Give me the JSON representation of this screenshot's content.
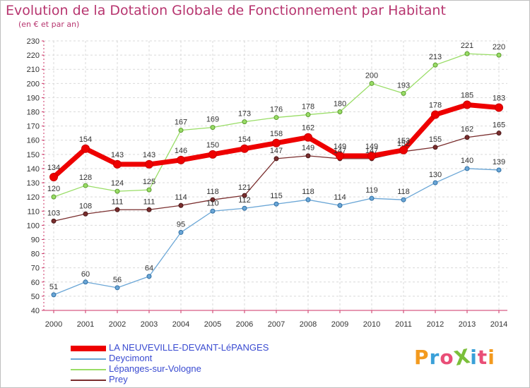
{
  "header": {
    "title": "Evolution de la Dotation Globale de Fonctionnement par Habitant",
    "subtitle": "(en € et par an)"
  },
  "logo": {
    "text": "ProXiti",
    "letters": [
      "P",
      "r",
      "o",
      "X",
      "i",
      "t",
      "i"
    ],
    "colors": [
      "#f39a1e",
      "#3aa0d8",
      "#e94e77",
      "#7bbf3a",
      "#3aa0d8",
      "#e94e77",
      "#f39a1e"
    ]
  },
  "chart_data": {
    "type": "line",
    "title": "Evolution de la Dotation Globale de Fonctionnement par Habitant",
    "subtitle": "(en € et par an)",
    "xlabel": "",
    "ylabel": "",
    "x": [
      "2000",
      "2001",
      "2002",
      "2003",
      "2004",
      "2005",
      "2006",
      "2007",
      "2008",
      "2009",
      "2010",
      "2011",
      "2012",
      "2013",
      "2014"
    ],
    "ylim": [
      40,
      230
    ],
    "yticks": [
      40,
      50,
      60,
      70,
      80,
      90,
      100,
      110,
      120,
      130,
      140,
      150,
      160,
      170,
      180,
      190,
      200,
      210,
      220,
      230
    ],
    "grid": true,
    "legend": "bottom-left",
    "series": [
      {
        "name": "LA NEUVEVILLE-DEVANT-LéPANGES",
        "color": "#ee0000",
        "values": [
          134,
          154,
          143,
          143,
          146,
          150,
          154,
          158,
          162,
          149,
          149,
          153,
          178,
          185,
          183
        ],
        "labels": [
          "134",
          "154",
          "143",
          "143",
          "146",
          "150",
          "154",
          "158",
          "162",
          "149",
          "149",
          "153",
          "178",
          "185",
          "183"
        ]
      },
      {
        "name": "Deycimont",
        "color": "#6aa6d6",
        "values": [
          51,
          60,
          56,
          64,
          95,
          110,
          112,
          115,
          118,
          114,
          119,
          118,
          130,
          140,
          139
        ],
        "labels": [
          "51",
          "60",
          "56",
          "64",
          "95",
          "110",
          "112",
          "115",
          "118",
          "114",
          "119",
          "118",
          "130",
          "140",
          "139"
        ]
      },
      {
        "name": "Lépanges-sur-Vologne",
        "color": "#99dd66",
        "values": [
          120,
          128,
          124,
          125,
          167,
          169,
          173,
          176,
          178,
          180,
          200,
          193,
          213,
          221,
          220
        ],
        "labels": [
          "120",
          "128",
          "124",
          "125",
          "167",
          "169",
          "173",
          "176",
          "178",
          "180",
          "200",
          "193",
          "213",
          "221",
          "220"
        ]
      },
      {
        "name": "Prey",
        "color": "#7a2e2e",
        "values": [
          103,
          108,
          111,
          111,
          114,
          118,
          121,
          147,
          149,
          147,
          147,
          152,
          155,
          162,
          165
        ],
        "labels": [
          "103",
          "108",
          "111",
          "111",
          "114",
          "118",
          "121",
          "147",
          "149",
          "147",
          "147",
          "152",
          "155",
          "162",
          "165"
        ]
      }
    ]
  }
}
